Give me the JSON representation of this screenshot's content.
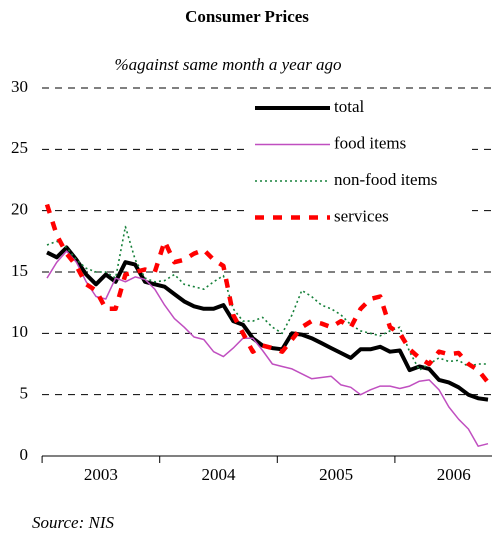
{
  "chart_data": {
    "type": "line",
    "title": "Consumer Prices",
    "subtitle": "%against same month a year ago",
    "source": "Source: NIS",
    "categories": [
      null,
      null,
      null,
      null,
      null,
      "2003",
      null,
      null,
      null,
      null,
      null,
      null,
      null,
      null,
      null,
      null,
      null,
      "2004",
      null,
      null,
      null,
      null,
      null,
      null,
      null,
      null,
      null,
      null,
      null,
      "2005",
      null,
      null,
      null,
      null,
      null,
      null,
      null,
      null,
      null,
      null,
      null,
      "2006",
      null,
      null,
      null,
      null
    ],
    "ylim": [
      0,
      30
    ],
    "yticks": [
      0,
      5,
      10,
      15,
      20,
      25,
      30
    ],
    "grid": true,
    "legend": "upper right",
    "series": [
      {
        "name": "total",
        "color": "#000000",
        "line_style": "solid",
        "values": [
          16.6,
          16.2,
          17.0,
          16.0,
          14.8,
          14.0,
          14.8,
          14.2,
          15.8,
          15.6,
          14.2,
          14.0,
          13.8,
          13.2,
          12.6,
          12.2,
          12.0,
          12.0,
          12.3,
          11.0,
          10.7,
          9.6,
          9.0,
          8.8,
          8.7,
          10.0,
          9.9,
          9.6,
          9.2,
          8.8,
          8.4,
          8.0,
          8.7,
          8.7,
          8.9,
          8.5,
          8.6,
          7.0,
          7.3,
          7.1,
          6.2,
          6.0,
          5.6,
          5.0,
          4.7,
          4.6
        ]
      },
      {
        "name": "food items",
        "color": "#c04fc0",
        "line_style": "thin",
        "values": [
          14.5,
          15.8,
          16.7,
          15.8,
          14.2,
          13.0,
          12.8,
          14.5,
          14.2,
          14.6,
          14.4,
          13.6,
          12.3,
          11.2,
          10.5,
          9.7,
          9.5,
          8.5,
          8.1,
          8.8,
          9.6,
          9.6,
          8.6,
          7.5,
          7.3,
          7.1,
          6.7,
          6.3,
          6.4,
          6.5,
          5.8,
          5.6,
          5.0,
          5.4,
          5.7,
          5.7,
          5.5,
          5.7,
          6.1,
          6.2,
          5.4,
          4.0,
          3.0,
          2.2,
          0.8,
          1.0
        ]
      },
      {
        "name": "non-food items",
        "color": "#16803a",
        "line_style": "dotted",
        "values": [
          17.2,
          17.5,
          17.0,
          16.0,
          15.3,
          15.0,
          15.0,
          14.5,
          18.7,
          16.0,
          14.5,
          14.2,
          14.3,
          14.8,
          14.0,
          13.8,
          13.6,
          14.2,
          14.7,
          12.0,
          11.0,
          11.0,
          11.3,
          10.5,
          10.0,
          11.5,
          13.5,
          13.0,
          12.3,
          12.0,
          11.5,
          10.7,
          10.2,
          10.0,
          9.8,
          10.2,
          10.5,
          8.5,
          7.0,
          7.5,
          8.0,
          7.7,
          7.8,
          7.3,
          7.5,
          7.5
        ]
      },
      {
        "name": "services",
        "color": "#ff0000",
        "line_style": "dashed",
        "values": [
          20.5,
          18.0,
          16.5,
          15.5,
          14.0,
          13.5,
          12.0,
          12.0,
          14.8,
          15.0,
          15.2,
          15.0,
          17.5,
          15.8,
          16.0,
          16.5,
          16.8,
          16.0,
          15.5,
          11.5,
          10.0,
          8.5,
          9.0,
          8.8,
          8.5,
          9.5,
          10.5,
          11.0,
          10.8,
          10.5,
          11.0,
          10.5,
          12.0,
          12.8,
          13.0,
          10.5,
          10.0,
          8.7,
          8.0,
          7.5,
          8.5,
          8.3,
          8.4,
          7.5,
          7.0,
          6.0
        ]
      }
    ]
  }
}
